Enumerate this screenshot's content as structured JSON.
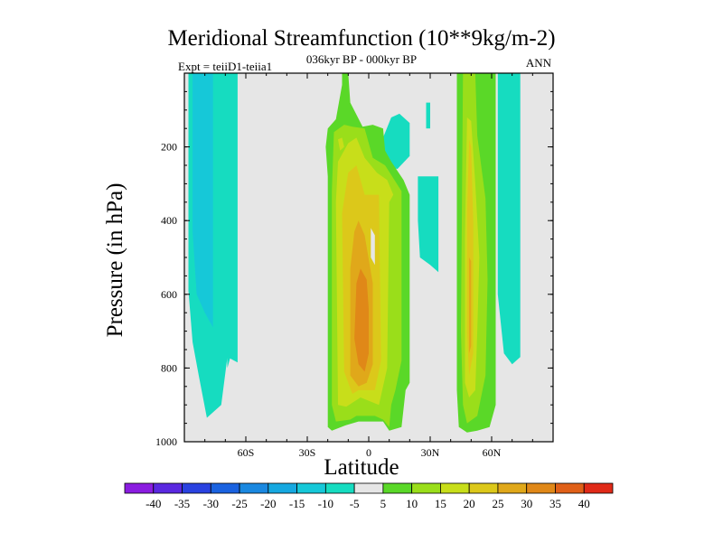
{
  "chart_data": {
    "type": "contour",
    "title": "Meridional Streamfunction (10**9kg/m-2)",
    "subtitle": "036kyr BP - 000kyr BP",
    "left_note": "Expt = teiiD1-teiia1",
    "right_note": "ANN",
    "xlabel": "Latitude",
    "ylabel": "Pressure (in hPa)",
    "xlim": [
      -90,
      90
    ],
    "ylim": [
      1000,
      0
    ],
    "y_reversed": true,
    "x_ticks": [
      {
        "value": -60,
        "label": "60S"
      },
      {
        "value": -30,
        "label": "30S"
      },
      {
        "value": 0,
        "label": "0"
      },
      {
        "value": 30,
        "label": "30N"
      },
      {
        "value": 60,
        "label": "60N"
      }
    ],
    "y_ticks": [
      {
        "value": 200,
        "label": "200"
      },
      {
        "value": 400,
        "label": "400"
      },
      {
        "value": 600,
        "label": "600"
      },
      {
        "value": 800,
        "label": "800"
      },
      {
        "value": 1000,
        "label": "1000"
      }
    ],
    "background_color": "#e6e6e6",
    "colorbar": {
      "labels": [
        "-40",
        "-35",
        "-30",
        "-25",
        "-20",
        "-15",
        "-10",
        "-5",
        "5",
        "10",
        "15",
        "20",
        "25",
        "30",
        "35",
        "40"
      ],
      "colors": [
        "#8a1ce0",
        "#5a28e0",
        "#2a42e0",
        "#1a62e0",
        "#1a88e0",
        "#16a8e0",
        "#16c8d8",
        "#16dcc0",
        "#e6e6e6",
        "#5ad828",
        "#9ade1a",
        "#c8de1a",
        "#dcc81a",
        "#e0a81a",
        "#e08818",
        "#e06018",
        "#e02a18"
      ]
    },
    "regions": [
      {
        "level": -5,
        "color": "#16dcc0",
        "points": [
          [
            -88,
            0
          ],
          [
            -64,
            0
          ],
          [
            -64,
            785
          ],
          [
            -69,
            770
          ],
          [
            -72,
            900
          ],
          [
            -79,
            935
          ],
          [
            -83,
            820
          ],
          [
            -86,
            730
          ],
          [
            -88,
            590
          ]
        ]
      },
      {
        "level": -10,
        "color": "#16c8d8",
        "points": [
          [
            -86,
            0
          ],
          [
            -76,
            0
          ],
          [
            -76,
            690
          ],
          [
            -80,
            650
          ],
          [
            -84,
            600
          ],
          [
            -86,
            430
          ]
        ]
      },
      {
        "level": -5,
        "color": "#16dcc0",
        "points": [
          [
            -70,
            0
          ],
          [
            -66,
            0
          ],
          [
            -66,
            740
          ],
          [
            -69,
            800
          ],
          [
            -70,
            600
          ]
        ]
      },
      {
        "level": -5,
        "color": "#16dcc0",
        "points": [
          [
            11,
            120
          ],
          [
            15,
            110
          ],
          [
            20,
            135
          ],
          [
            20,
            225
          ],
          [
            14,
            260
          ],
          [
            8,
            250
          ],
          [
            7,
            175
          ]
        ]
      },
      {
        "level": -5,
        "color": "#16dcc0",
        "points": [
          [
            24,
            280
          ],
          [
            34,
            280
          ],
          [
            34,
            540
          ],
          [
            30,
            520
          ],
          [
            25,
            500
          ],
          [
            24,
            400
          ]
        ]
      },
      {
        "level": -5,
        "color": "#16dcc0",
        "points": [
          [
            63,
            0
          ],
          [
            74,
            0
          ],
          [
            74,
            770
          ],
          [
            70,
            790
          ],
          [
            66,
            760
          ],
          [
            63,
            600
          ]
        ]
      },
      {
        "level": -5,
        "color": "#16dcc0",
        "points": [
          [
            28,
            80
          ],
          [
            30,
            80
          ],
          [
            30,
            150
          ],
          [
            28,
            150
          ]
        ]
      },
      {
        "level": 5,
        "color": "#5ad828",
        "points": [
          [
            -12,
            0
          ],
          [
            -10,
            0
          ],
          [
            -9,
            80
          ],
          [
            -3,
            145
          ],
          [
            2,
            140
          ],
          [
            7,
            150
          ],
          [
            8,
            210
          ],
          [
            11,
            240
          ],
          [
            17,
            290
          ],
          [
            20,
            330
          ],
          [
            20,
            840
          ],
          [
            18,
            860
          ],
          [
            16,
            960
          ],
          [
            10,
            970
          ],
          [
            7,
            945
          ],
          [
            -5,
            945
          ],
          [
            -11,
            955
          ],
          [
            -18,
            970
          ],
          [
            -20,
            960
          ],
          [
            -20,
            280
          ],
          [
            -21,
            200
          ],
          [
            -20,
            150
          ],
          [
            -16,
            125
          ]
        ]
      },
      {
        "level": 10,
        "color": "#9ade1a",
        "points": [
          [
            -8,
            145
          ],
          [
            -2,
            150
          ],
          [
            2,
            230
          ],
          [
            8,
            250
          ],
          [
            16,
            320
          ],
          [
            16,
            780
          ],
          [
            13,
            860
          ],
          [
            11,
            900
          ],
          [
            10,
            960
          ],
          [
            7,
            940
          ],
          [
            3,
            930
          ],
          [
            -6,
            930
          ],
          [
            -9,
            940
          ],
          [
            -16,
            945
          ],
          [
            -18,
            900
          ],
          [
            -18,
            320
          ],
          [
            -17,
            160
          ],
          [
            -12,
            140
          ]
        ]
      },
      {
        "level": 15,
        "color": "#c8de1a",
        "points": [
          [
            -10,
            190
          ],
          [
            -6,
            175
          ],
          [
            -2,
            230
          ],
          [
            4,
            270
          ],
          [
            9,
            290
          ],
          [
            12,
            330
          ],
          [
            10,
            350
          ],
          [
            9,
            800
          ],
          [
            5,
            900
          ],
          [
            -4,
            880
          ],
          [
            -11,
            905
          ],
          [
            -15,
            900
          ],
          [
            -16,
            350
          ],
          [
            -15,
            240
          ]
        ]
      },
      {
        "level": 20,
        "color": "#dcc81a",
        "points": [
          [
            -10,
            270
          ],
          [
            -6,
            250
          ],
          [
            -2,
            330
          ],
          [
            5,
            330
          ],
          [
            6,
            780
          ],
          [
            3,
            860
          ],
          [
            -5,
            860
          ],
          [
            -8,
            870
          ],
          [
            -12,
            810
          ],
          [
            -13,
            380
          ]
        ]
      },
      {
        "level": 25,
        "color": "#e0a81a",
        "points": [
          [
            -7,
            430
          ],
          [
            -5,
            400
          ],
          [
            -2,
            440
          ],
          [
            2,
            570
          ],
          [
            2,
            790
          ],
          [
            -1,
            840
          ],
          [
            -5,
            850
          ],
          [
            -9,
            820
          ],
          [
            -9,
            530
          ]
        ]
      },
      {
        "level": 30,
        "color": "#e08818",
        "points": [
          [
            -6,
            570
          ],
          [
            -4,
            530
          ],
          [
            -1,
            560
          ],
          [
            0,
            640
          ],
          [
            0,
            760
          ],
          [
            -2,
            810
          ],
          [
            -5,
            790
          ],
          [
            -7,
            720
          ]
        ]
      },
      {
        "level": 15,
        "color": "#c8de1a",
        "points": [
          [
            -15,
            180
          ],
          [
            -13,
            175
          ],
          [
            -12,
            200
          ],
          [
            -14,
            210
          ]
        ]
      },
      {
        "level": 5,
        "color": "#e6e6e6",
        "points": [
          [
            1,
            420
          ],
          [
            3,
            440
          ],
          [
            3,
            520
          ],
          [
            1,
            500
          ]
        ]
      },
      {
        "level": 5,
        "color": "#5ad828",
        "points": [
          [
            43,
            0
          ],
          [
            62,
            0
          ],
          [
            62,
            900
          ],
          [
            59,
            960
          ],
          [
            53,
            970
          ],
          [
            48,
            975
          ],
          [
            44,
            960
          ],
          [
            43,
            860
          ]
        ]
      },
      {
        "level": 10,
        "color": "#9ade1a",
        "points": [
          [
            46,
            0
          ],
          [
            52,
            0
          ],
          [
            53,
            170
          ],
          [
            57,
            340
          ],
          [
            58,
            560
          ],
          [
            57,
            820
          ],
          [
            53,
            930
          ],
          [
            48,
            950
          ],
          [
            46,
            900
          ],
          [
            45,
            700
          ]
        ]
      },
      {
        "level": 15,
        "color": "#c8de1a",
        "points": [
          [
            48,
            120
          ],
          [
            50,
            130
          ],
          [
            52,
            300
          ],
          [
            54,
            500
          ],
          [
            53,
            700
          ],
          [
            52,
            860
          ],
          [
            49,
            880
          ],
          [
            47,
            840
          ],
          [
            47,
            450
          ]
        ]
      },
      {
        "level": 20,
        "color": "#dcc81a",
        "points": [
          [
            49,
            180
          ],
          [
            50,
            200
          ],
          [
            51,
            400
          ],
          [
            51,
            760
          ],
          [
            49,
            820
          ],
          [
            48,
            700
          ],
          [
            48,
            380
          ]
        ]
      },
      {
        "level": 25,
        "color": "#e0a81a",
        "points": [
          [
            49,
            500
          ],
          [
            50,
            510
          ],
          [
            50,
            740
          ],
          [
            49,
            760
          ]
        ]
      },
      {
        "level": 5,
        "color": "#5ad828",
        "points": [
          [
            -13,
            0
          ],
          [
            -11,
            0
          ],
          [
            -11,
            70
          ],
          [
            -13,
            70
          ]
        ]
      }
    ]
  }
}
